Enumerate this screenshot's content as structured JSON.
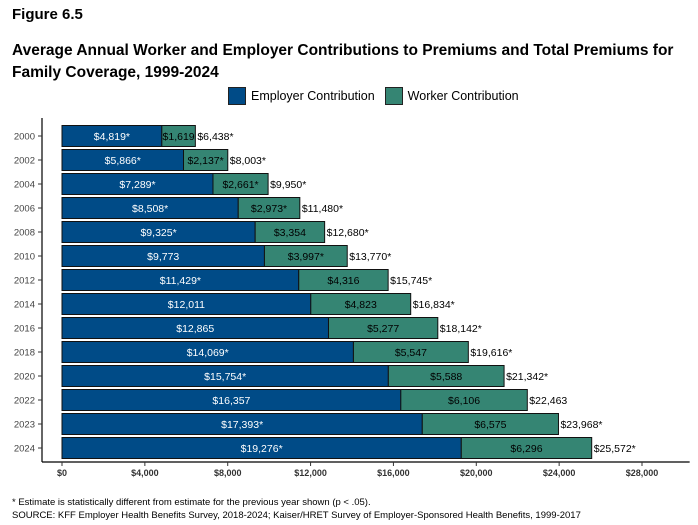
{
  "figure_label": "Figure 6.5",
  "chart_data": {
    "type": "bar",
    "orientation": "horizontal",
    "stacked": true,
    "title": "Average Annual Worker and Employer Contributions to Premiums and Total Premiums for Family Coverage, 1999-2024",
    "categories": [
      "2000",
      "2002",
      "2004",
      "2006",
      "2008",
      "2010",
      "2012",
      "2014",
      "2016",
      "2018",
      "2020",
      "2022",
      "2023",
      "2024"
    ],
    "series": [
      {
        "name": "Employer Contribution",
        "color": "#004b87",
        "values": [
          4819,
          5866,
          7289,
          8508,
          9325,
          9773,
          11429,
          12011,
          12865,
          14069,
          15754,
          16357,
          17393,
          19276
        ],
        "labels": [
          "$4,819*",
          "$5,866*",
          "$7,289*",
          "$8,508*",
          "$9,325*",
          "$9,773",
          "$11,429*",
          "$12,011",
          "$12,865",
          "$14,069*",
          "$15,754*",
          "$16,357",
          "$17,393*",
          "$19,276*"
        ]
      },
      {
        "name": "Worker Contribution",
        "color": "#358573",
        "values": [
          1619,
          2137,
          2661,
          2973,
          3354,
          3997,
          4316,
          4823,
          5277,
          5547,
          5588,
          6106,
          6575,
          6296
        ],
        "labels": [
          "$1,619",
          "$2,137*",
          "$2,661*",
          "$2,973*",
          "$3,354",
          "$3,997*",
          "$4,316",
          "$4,823",
          "$5,277",
          "$5,547",
          "$5,588",
          "$6,106",
          "$6,575",
          "$6,296"
        ]
      }
    ],
    "totals": [
      6438,
      8003,
      9950,
      11480,
      12680,
      13770,
      15745,
      16834,
      18142,
      19616,
      21342,
      22463,
      23968,
      25572
    ],
    "total_labels": [
      "$6,438*",
      "$8,003*",
      "$9,950*",
      "$11,480*",
      "$12,680*",
      "$13,770*",
      "$15,745*",
      "$16,834*",
      "$18,142*",
      "$19,616*",
      "$21,342*",
      "$22,463",
      "$23,968*",
      "$25,572*"
    ],
    "x_ticks": [
      0,
      4000,
      8000,
      12000,
      16000,
      20000,
      24000,
      28000
    ],
    "x_tick_labels": [
      "$0",
      "$4,000",
      "$8,000",
      "$12,000",
      "$16,000",
      "$20,000",
      "$24,000",
      "$28,000"
    ],
    "xlim": [
      -2000,
      30300
    ],
    "grid": false,
    "legend_position": "top"
  },
  "footnote": "* Estimate is statistically different from estimate for the previous year shown (p < .05).",
  "source": "SOURCE: KFF Employer Health Benefits Survey, 2018-2024; Kaiser/HRET Survey of Employer-Sponsored Health Benefits, 1999-2017"
}
